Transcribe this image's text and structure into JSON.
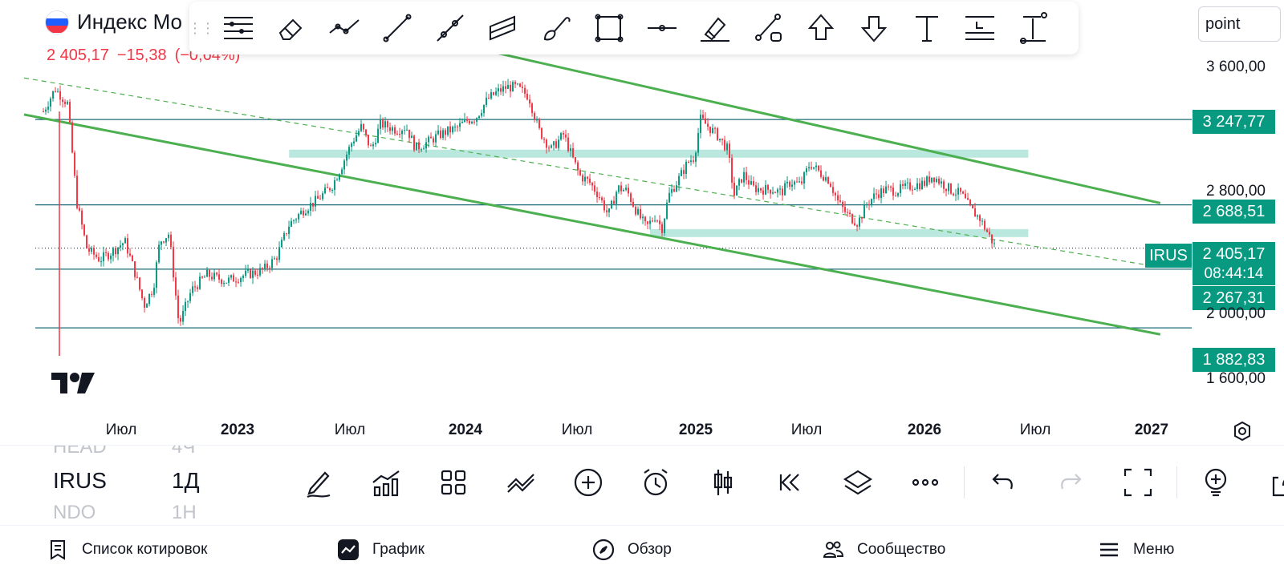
{
  "header": {
    "title": "Индекс Мо",
    "last_price": "2 405,17",
    "change": "−15,38",
    "change_pct": "(−0,64%)",
    "flag_colors": [
      "#ffffff",
      "#1e5eff",
      "#f23645"
    ]
  },
  "drawing_toolbar": {
    "tools": [
      "tool-list-icon",
      "eraser-icon",
      "trend-lines-icon",
      "line-icon",
      "ray-icon",
      "parallel-channel-icon",
      "brush-icon",
      "rectangle-icon",
      "horizontal-line-icon",
      "highlighter-icon",
      "path-icon",
      "arrow-up-icon",
      "arrow-down-icon",
      "text-icon",
      "long-position-icon",
      "measure-icon"
    ]
  },
  "search": {
    "value": "point"
  },
  "price_axis": {
    "labels": [
      "3 600,00",
      "2 800,00",
      "2 000,00",
      "1 600,00"
    ],
    "tags": [
      "3 247,77",
      "2 688,51",
      "2 267,31",
      "1 882,83"
    ],
    "current_price": "2 405,17",
    "countdown": "08:44:14",
    "symbol_tag": "IRUS"
  },
  "time_axis": {
    "labels": [
      {
        "text": "Июл",
        "bold": false
      },
      {
        "text": "2023",
        "bold": true
      },
      {
        "text": "Июл",
        "bold": false
      },
      {
        "text": "2024",
        "bold": true
      },
      {
        "text": "Июл",
        "bold": false
      },
      {
        "text": "2025",
        "bold": true
      },
      {
        "text": "Июл",
        "bold": false
      },
      {
        "text": "2026",
        "bold": true
      },
      {
        "text": "Июл",
        "bold": false
      },
      {
        "text": "2027",
        "bold": true
      }
    ]
  },
  "chart_data": {
    "type": "candlestick",
    "price_scale": [
      1600,
      3600
    ],
    "horizontal_levels": [
      3247.77,
      2688.51,
      2267.31,
      1882.83
    ],
    "current_price": 2405.17,
    "close_series": [
      {
        "date": "2022-04",
        "close": 3300
      },
      {
        "date": "2022-04-20",
        "close": 3450
      },
      {
        "date": "2022-05-10",
        "close": 3350
      },
      {
        "date": "2022-05-25",
        "close": 2700
      },
      {
        "date": "2022-06-10",
        "close": 2400
      },
      {
        "date": "2022-07-01",
        "close": 2330
      },
      {
        "date": "2022-07-20",
        "close": 2380
      },
      {
        "date": "2022-08-10",
        "close": 2450
      },
      {
        "date": "2022-08-25",
        "close": 2260
      },
      {
        "date": "2022-09-10",
        "close": 2030
      },
      {
        "date": "2022-09-25",
        "close": 2150
      },
      {
        "date": "2022-10-05",
        "close": 2450
      },
      {
        "date": "2022-10-20",
        "close": 2500
      },
      {
        "date": "2022-11-05",
        "close": 1900
      },
      {
        "date": "2022-11-25",
        "close": 2130
      },
      {
        "date": "2022-12-20",
        "close": 2230
      },
      {
        "date": "2023-01-20",
        "close": 2190
      },
      {
        "date": "2023-02-20",
        "close": 2230
      },
      {
        "date": "2023-03-20",
        "close": 2260
      },
      {
        "date": "2023-04-10",
        "close": 2340
      },
      {
        "date": "2023-05-01",
        "close": 2560
      },
      {
        "date": "2023-05-25",
        "close": 2660
      },
      {
        "date": "2023-06-15",
        "close": 2720
      },
      {
        "date": "2023-07-10",
        "close": 2820
      },
      {
        "date": "2023-07-25",
        "close": 2950
      },
      {
        "date": "2023-08-10",
        "close": 3100
      },
      {
        "date": "2023-08-25",
        "close": 3200
      },
      {
        "date": "2023-09-10",
        "close": 3050
      },
      {
        "date": "2023-09-25",
        "close": 3220
      },
      {
        "date": "2023-10-20",
        "close": 3180
      },
      {
        "date": "2023-11-05",
        "close": 3200
      },
      {
        "date": "2023-11-20",
        "close": 3060
      },
      {
        "date": "2023-12-10",
        "close": 3100
      },
      {
        "date": "2023-12-25",
        "close": 3140
      },
      {
        "date": "2024-01-10",
        "close": 3170
      },
      {
        "date": "2024-01-25",
        "close": 3190
      },
      {
        "date": "2024-02-10",
        "close": 3240
      },
      {
        "date": "2024-02-25",
        "close": 3260
      },
      {
        "date": "2024-03-15",
        "close": 3380
      },
      {
        "date": "2024-03-31",
        "close": 3430
      },
      {
        "date": "2024-04-15",
        "close": 3460
      },
      {
        "date": "2024-04-30",
        "close": 3460
      },
      {
        "date": "2024-05-20",
        "close": 3400
      },
      {
        "date": "2024-06-05",
        "close": 3180
      },
      {
        "date": "2024-06-25",
        "close": 3050
      },
      {
        "date": "2024-07-15",
        "close": 3150
      },
      {
        "date": "2024-07-31",
        "close": 2980
      },
      {
        "date": "2024-08-10",
        "close": 2880
      },
      {
        "date": "2024-08-25",
        "close": 2840
      },
      {
        "date": "2024-09-10",
        "close": 2750
      },
      {
        "date": "2024-09-25",
        "close": 2620
      },
      {
        "date": "2024-10-10",
        "close": 2800
      },
      {
        "date": "2024-10-25",
        "close": 2780
      },
      {
        "date": "2024-11-10",
        "close": 2640
      },
      {
        "date": "2024-11-25",
        "close": 2540
      },
      {
        "date": "2024-12-10",
        "close": 2620
      },
      {
        "date": "2024-12-20",
        "close": 2530
      },
      {
        "date": "2024-12-31",
        "close": 2750
      },
      {
        "date": "2025-01-15",
        "close": 2850
      },
      {
        "date": "2025-01-31",
        "close": 2970
      },
      {
        "date": "2025-02-10",
        "close": 3000
      },
      {
        "date": "2025-02-20",
        "close": 3250
      },
      {
        "date": "2025-03-05",
        "close": 3200
      },
      {
        "date": "2025-03-20",
        "close": 3140
      },
      {
        "date": "2025-04-05",
        "close": 3050
      },
      {
        "date": "2025-04-15",
        "close": 2750
      },
      {
        "date": "2025-04-30",
        "close": 2890
      },
      {
        "date": "2025-05-15",
        "close": 2800
      },
      {
        "date": "2025-05-31",
        "close": 2790
      },
      {
        "date": "2025-06-15",
        "close": 2790
      },
      {
        "date": "2025-06-30",
        "close": 2770
      },
      {
        "date": "2025-07-15",
        "close": 2840
      },
      {
        "date": "2025-07-31",
        "close": 2820
      },
      {
        "date": "2025-08-15",
        "close": 2960
      },
      {
        "date": "2025-08-31",
        "close": 2900
      },
      {
        "date": "2025-09-15",
        "close": 2850
      },
      {
        "date": "2025-09-30",
        "close": 2700
      },
      {
        "date": "2025-10-15",
        "close": 2620
      },
      {
        "date": "2025-10-31",
        "close": 2570
      },
      {
        "date": "2025-11-15",
        "close": 2700
      },
      {
        "date": "2025-11-30",
        "close": 2760
      },
      {
        "date": "2025-12-15",
        "close": 2790
      },
      {
        "date": "2025-12-31",
        "close": 2780
      },
      {
        "date": "2026-01-15",
        "close": 2800
      },
      {
        "date": "2026-01-31",
        "close": 2820
      },
      {
        "date": "2026-02-15",
        "close": 2830
      },
      {
        "date": "2026-02-28",
        "close": 2880
      },
      {
        "date": "2026-03-15",
        "close": 2830
      },
      {
        "date": "2026-03-31",
        "close": 2780
      },
      {
        "date": "2026-04-15",
        "close": 2760
      },
      {
        "date": "2026-04-30",
        "close": 2660
      },
      {
        "date": "2026-05-15",
        "close": 2600
      },
      {
        "date": "2026-05-31",
        "close": 2480
      },
      {
        "date": "2026-06-10",
        "close": 2405
      }
    ],
    "trend_lines": [
      {
        "name": "channel-upper",
        "from": {
          "date": "2023-10",
          "price": 3850
        },
        "to": {
          "date": "2027-03",
          "price": 2700
        }
      },
      {
        "name": "channel-lower",
        "from": {
          "date": "2022-03",
          "price": 3280
        },
        "to": {
          "date": "2027-03",
          "price": 1840
        }
      },
      {
        "name": "dashed-midline",
        "from": {
          "date": "2022-03",
          "price": 3520
        },
        "to": {
          "date": "2027-03",
          "price": 2280
        }
      }
    ],
    "zones": [
      {
        "name": "resistance-zone",
        "from": "2023-05",
        "to": "2026-08",
        "price_low": 3000,
        "price_high": 3050
      },
      {
        "name": "support-zone",
        "from": "2024-12",
        "to": "2026-08",
        "price_low": 2480,
        "price_high": 2530
      }
    ],
    "colors": {
      "up": "#089981",
      "down": "#f23645",
      "trend": "#4caf50",
      "zone": "#b2e5da",
      "level": "#1b6b7a"
    }
  },
  "bottom_panel": {
    "symbols": [
      {
        "symbol": "HEAD",
        "interval": "4Ч"
      },
      {
        "symbol": "IRUS",
        "interval": "1Д"
      },
      {
        "symbol": "NDO",
        "interval": "1Н"
      }
    ],
    "actions": [
      "pencil-icon",
      "indicators-icon",
      "layout-grid-icon",
      "compare-icon",
      "add-icon",
      "alert-icon",
      "candles-icon",
      "replay-icon",
      "layers-icon",
      "more-icon",
      "undo-icon",
      "redo-icon",
      "fullscreen-icon",
      "idea-icon",
      "share-icon"
    ]
  },
  "nav": {
    "watchlist": "Список котировок",
    "chart": "График",
    "explore": "Обзор",
    "community": "Сообщество",
    "menu": "Меню"
  }
}
